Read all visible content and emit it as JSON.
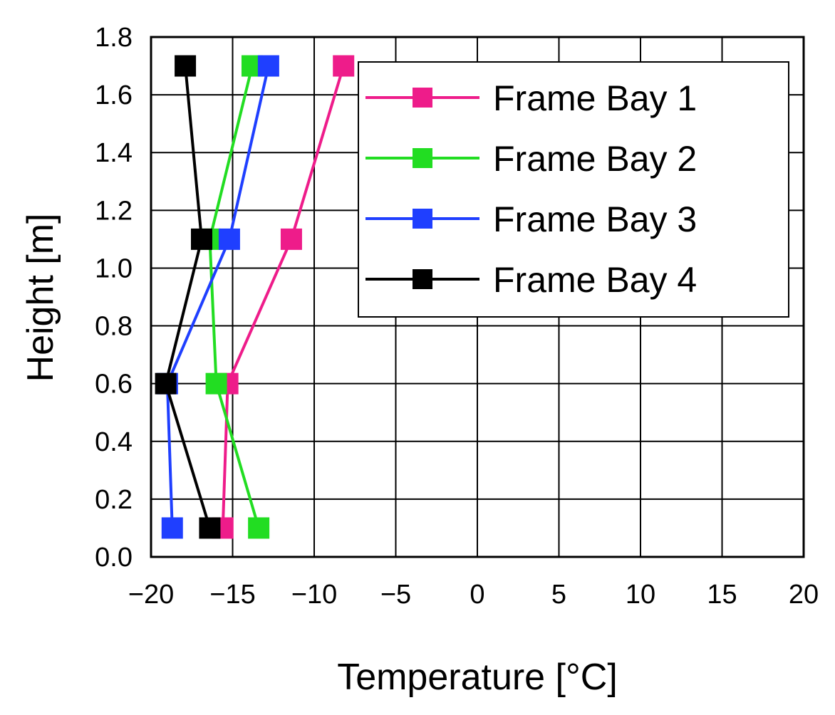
{
  "chart_data": {
    "type": "line",
    "xlabel": "Temperature [°C]",
    "ylabel": "Height [m]",
    "xlim": [
      -20,
      20
    ],
    "ylim": [
      0,
      1.8
    ],
    "xticks": [
      -20,
      -15,
      -10,
      -5,
      0,
      5,
      10,
      15,
      20
    ],
    "xtick_labels": [
      "−20",
      "−15",
      "−10",
      "−5",
      "0",
      "5",
      "10",
      "15",
      "20"
    ],
    "yticks": [
      0,
      0.2,
      0.4,
      0.6,
      0.8,
      1.0,
      1.2,
      1.4,
      1.6,
      1.8
    ],
    "ytick_labels": [
      "0.0",
      "0.2",
      "0.4",
      "0.6",
      "0.8",
      "1.0",
      "1.2",
      "1.4",
      "1.6",
      "1.8"
    ],
    "grid": true,
    "legend_position": "top-right",
    "series": [
      {
        "name": "Frame Bay 1",
        "color": "#ee1c8a",
        "points": [
          [
            -15.6,
            0.1
          ],
          [
            -15.3,
            0.6
          ],
          [
            -11.4,
            1.1
          ],
          [
            -8.2,
            1.7
          ]
        ]
      },
      {
        "name": "Frame Bay 2",
        "color": "#22dd22",
        "points": [
          [
            -13.4,
            0.1
          ],
          [
            -16.0,
            0.6
          ],
          [
            -16.4,
            1.1
          ],
          [
            -13.8,
            1.7
          ]
        ]
      },
      {
        "name": "Frame Bay 3",
        "color": "#1f3fff",
        "points": [
          [
            -18.7,
            0.1
          ],
          [
            -19.0,
            0.6
          ],
          [
            -15.2,
            1.1
          ],
          [
            -12.8,
            1.7
          ]
        ]
      },
      {
        "name": "Frame Bay 4",
        "color": "#000000",
        "points": [
          [
            -16.4,
            0.1
          ],
          [
            -19.1,
            0.6
          ],
          [
            -16.9,
            1.1
          ],
          [
            -17.9,
            1.7
          ]
        ]
      }
    ]
  }
}
